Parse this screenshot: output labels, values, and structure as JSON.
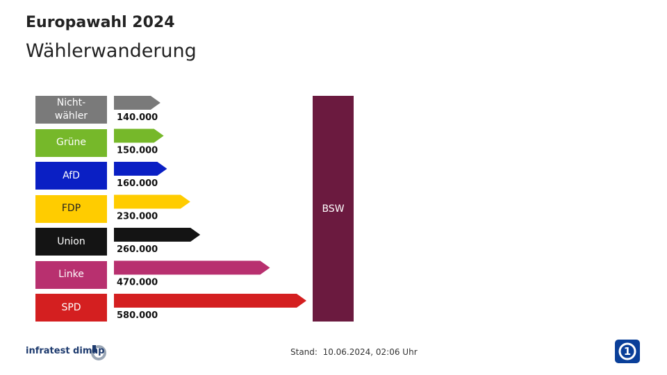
{
  "chart_data": {
    "type": "bar",
    "title": "Europawahl 2024",
    "subtitle": "Wählerwanderung",
    "target": "BSW",
    "target_color": "#6b1a3f",
    "categories": [
      "Nicht-wähler",
      "Grüne",
      "AfD",
      "FDP",
      "Union",
      "Linke",
      "SPD"
    ],
    "values": [
      140000,
      150000,
      160000,
      230000,
      260000,
      470000,
      580000
    ],
    "value_labels": [
      "140.000",
      "150.000",
      "160.000",
      "230.000",
      "260.000",
      "470.000",
      "580.000"
    ],
    "colors": [
      "#7a7a7a",
      "#76b82a",
      "#0a1fc4",
      "#ffcc00",
      "#141414",
      "#b8306f",
      "#d41f20"
    ],
    "source": "infratest dimap",
    "footnote": "Stand:  10.06.2024, 02:06 Uhr"
  }
}
